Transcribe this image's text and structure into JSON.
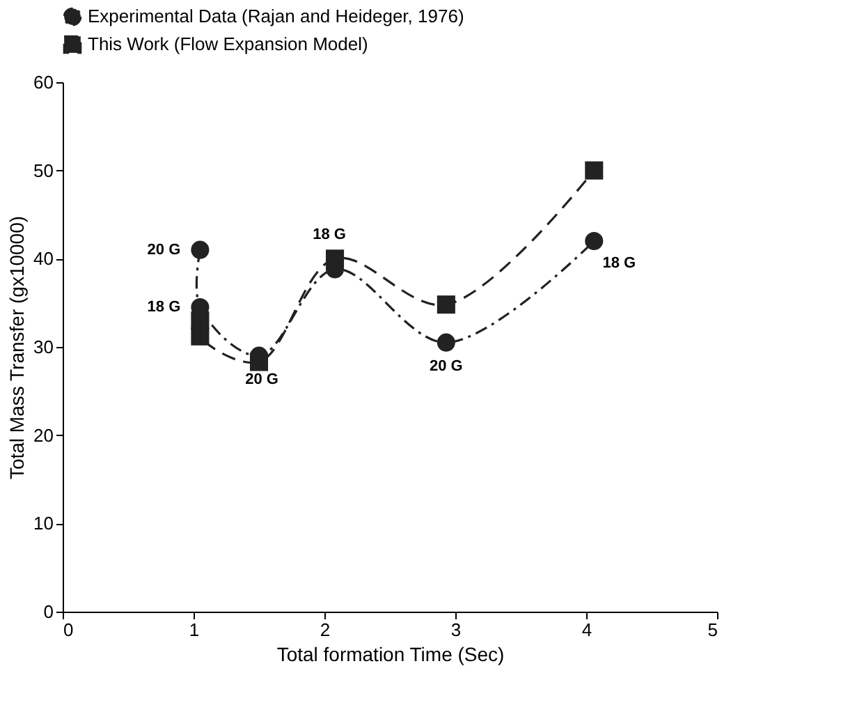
{
  "chart_data": {
    "type": "line",
    "xlabel": "Total formation Time (Sec)",
    "ylabel": "Total Mass Transfer (gx10000)",
    "xlim": [
      0,
      5
    ],
    "xticks": [
      0,
      1,
      2,
      3,
      4,
      5
    ],
    "ylim": [
      0,
      60
    ],
    "yticks": [
      0,
      10,
      20,
      30,
      40,
      50,
      60
    ],
    "grid": false,
    "legend": "top",
    "series": [
      {
        "name": "Experimental Data (Rajan and Heideger, 1976)",
        "color": "#222222",
        "marker": "circle",
        "line_style": "dashdot",
        "x": [
          1.05,
          1.05,
          1.5,
          2.08,
          2.93,
          4.06
        ],
        "values": [
          41,
          34.5,
          29,
          38.8,
          30.5,
          42
        ]
      },
      {
        "name": "This Work (Flow Expansion Model)",
        "color": "#222222",
        "marker": "square",
        "line_style": "dashed",
        "x": [
          1.05,
          1.05,
          1.5,
          2.08,
          2.93,
          4.06
        ],
        "values": [
          33,
          31.2,
          28.3,
          40,
          34.8,
          50
        ]
      }
    ],
    "annotations": [
      {
        "text": "20 G",
        "x": 1.05,
        "y": 41
      },
      {
        "text": "18 G",
        "x": 1.05,
        "y": 34.5
      },
      {
        "text": "20 G",
        "x": 1.5,
        "y": 29
      },
      {
        "text": "18 G",
        "x": 2.08,
        "y": 40
      },
      {
        "text": "20 G",
        "x": 2.93,
        "y": 30.5
      },
      {
        "text": "18 G",
        "x": 4.06,
        "y": 42
      }
    ]
  }
}
